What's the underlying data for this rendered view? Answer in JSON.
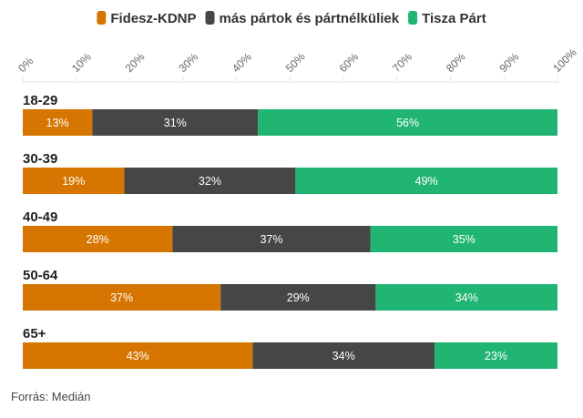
{
  "chart_data": {
    "type": "bar",
    "orientation": "horizontal",
    "stacked": true,
    "title": "",
    "xlabel": "",
    "ylabel": "",
    "xlim": [
      0,
      100
    ],
    "x_ticks": [
      "0%",
      "10%",
      "20%",
      "30%",
      "40%",
      "50%",
      "60%",
      "70%",
      "80%",
      "90%",
      "100%"
    ],
    "categories": [
      "18-29",
      "30-39",
      "40-49",
      "50-64",
      "65+"
    ],
    "series": [
      {
        "name": "Fidesz-KDNP",
        "color": "#d67600",
        "values": [
          13,
          19,
          28,
          37,
          43
        ]
      },
      {
        "name": "más pártok és pártnélküliek",
        "color": "#464646",
        "values": [
          31,
          32,
          37,
          29,
          34
        ]
      },
      {
        "name": "Tisza Párt",
        "color": "#21b573",
        "values": [
          56,
          49,
          35,
          34,
          23
        ]
      }
    ],
    "value_suffix": "%",
    "legend": "top-center",
    "grid": false
  },
  "source": "Forrás: Medián"
}
